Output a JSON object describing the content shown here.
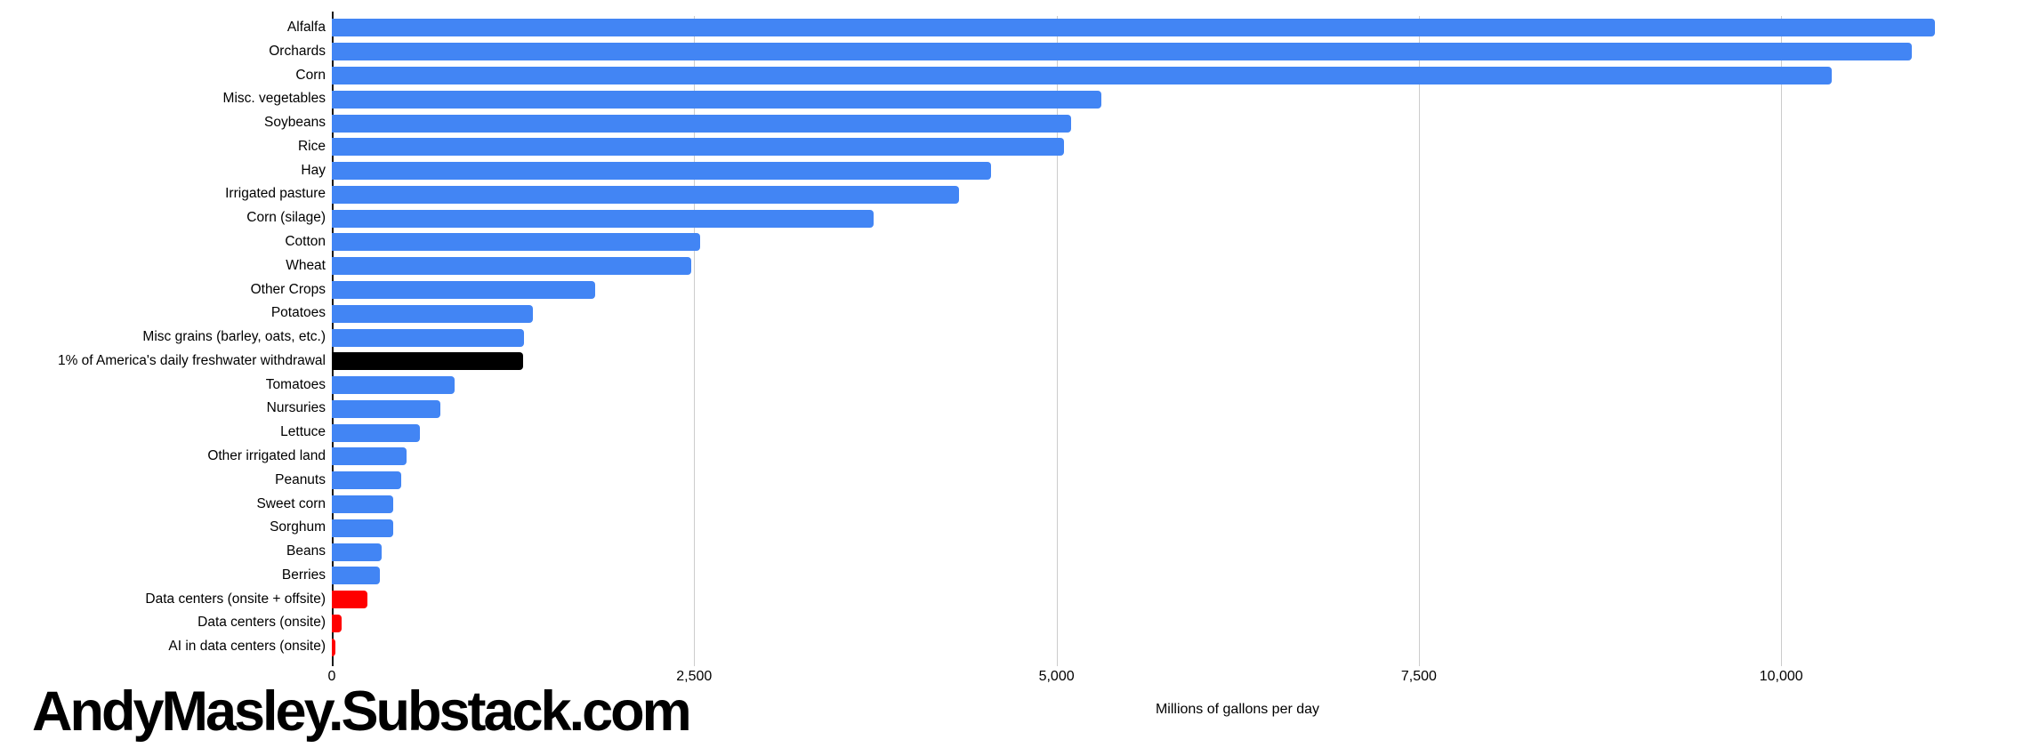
{
  "watermark": {
    "text": "AndyMasley.Substack.com"
  },
  "colors": {
    "crop_bar": "#4285f4",
    "benchmark_bar": "#000000",
    "data_center_bar": "#ff0000",
    "gridline": "#cccccc",
    "axis_line": "#1a1a1a",
    "text": "#000000",
    "background": "#ffffff"
  },
  "chart_data": {
    "type": "bar",
    "orientation": "horizontal",
    "title": "",
    "xlabel": "Millions of gallons per day",
    "ylabel": "",
    "xlim": [
      0,
      11670
    ],
    "grid": true,
    "x_ticks": [
      {
        "value": 0,
        "label": "0"
      },
      {
        "value": 2500,
        "label": "2,500"
      },
      {
        "value": 5000,
        "label": "5,000"
      },
      {
        "value": 7500,
        "label": "7,500"
      },
      {
        "value": 10000,
        "label": "10,000"
      }
    ],
    "bars": [
      {
        "label": "Alfalfa",
        "value": 11060,
        "color": "#4285f4"
      },
      {
        "label": "Orchards",
        "value": 10900,
        "color": "#4285f4"
      },
      {
        "label": "Corn",
        "value": 10350,
        "color": "#4285f4"
      },
      {
        "label": "Misc. vegetables",
        "value": 5310,
        "color": "#4285f4"
      },
      {
        "label": "Soybeans",
        "value": 5100,
        "color": "#4285f4"
      },
      {
        "label": "Rice",
        "value": 5050,
        "color": "#4285f4"
      },
      {
        "label": "Hay",
        "value": 4550,
        "color": "#4285f4"
      },
      {
        "label": "Irrigated pasture",
        "value": 4330,
        "color": "#4285f4"
      },
      {
        "label": "Corn (silage)",
        "value": 3740,
        "color": "#4285f4"
      },
      {
        "label": "Cotton",
        "value": 2540,
        "color": "#4285f4"
      },
      {
        "label": "Wheat",
        "value": 2480,
        "color": "#4285f4"
      },
      {
        "label": "Other Crops",
        "value": 1815,
        "color": "#4285f4"
      },
      {
        "label": "Potatoes",
        "value": 1390,
        "color": "#4285f4"
      },
      {
        "label": "Misc grains (barley, oats, etc.)",
        "value": 1325,
        "color": "#4285f4"
      },
      {
        "label": "1% of America's daily freshwater withdrawal",
        "value": 1320,
        "color": "#000000"
      },
      {
        "label": "Tomatoes",
        "value": 850,
        "color": "#4285f4"
      },
      {
        "label": "Nursuries",
        "value": 750,
        "color": "#4285f4"
      },
      {
        "label": "Lettuce",
        "value": 610,
        "color": "#4285f4"
      },
      {
        "label": "Other irrigated land",
        "value": 515,
        "color": "#4285f4"
      },
      {
        "label": "Peanuts",
        "value": 480,
        "color": "#4285f4"
      },
      {
        "label": "Sweet corn",
        "value": 425,
        "color": "#4285f4"
      },
      {
        "label": "Sorghum",
        "value": 425,
        "color": "#4285f4"
      },
      {
        "label": "Beans",
        "value": 345,
        "color": "#4285f4"
      },
      {
        "label": "Berries",
        "value": 330,
        "color": "#4285f4"
      },
      {
        "label": "Data centers (onsite + offsite)",
        "value": 245,
        "color": "#ff0000"
      },
      {
        "label": "Data centers (onsite)",
        "value": 65,
        "color": "#ff0000"
      },
      {
        "label": "AI in data centers (onsite)",
        "value": 25,
        "color": "#ff0000"
      }
    ]
  }
}
